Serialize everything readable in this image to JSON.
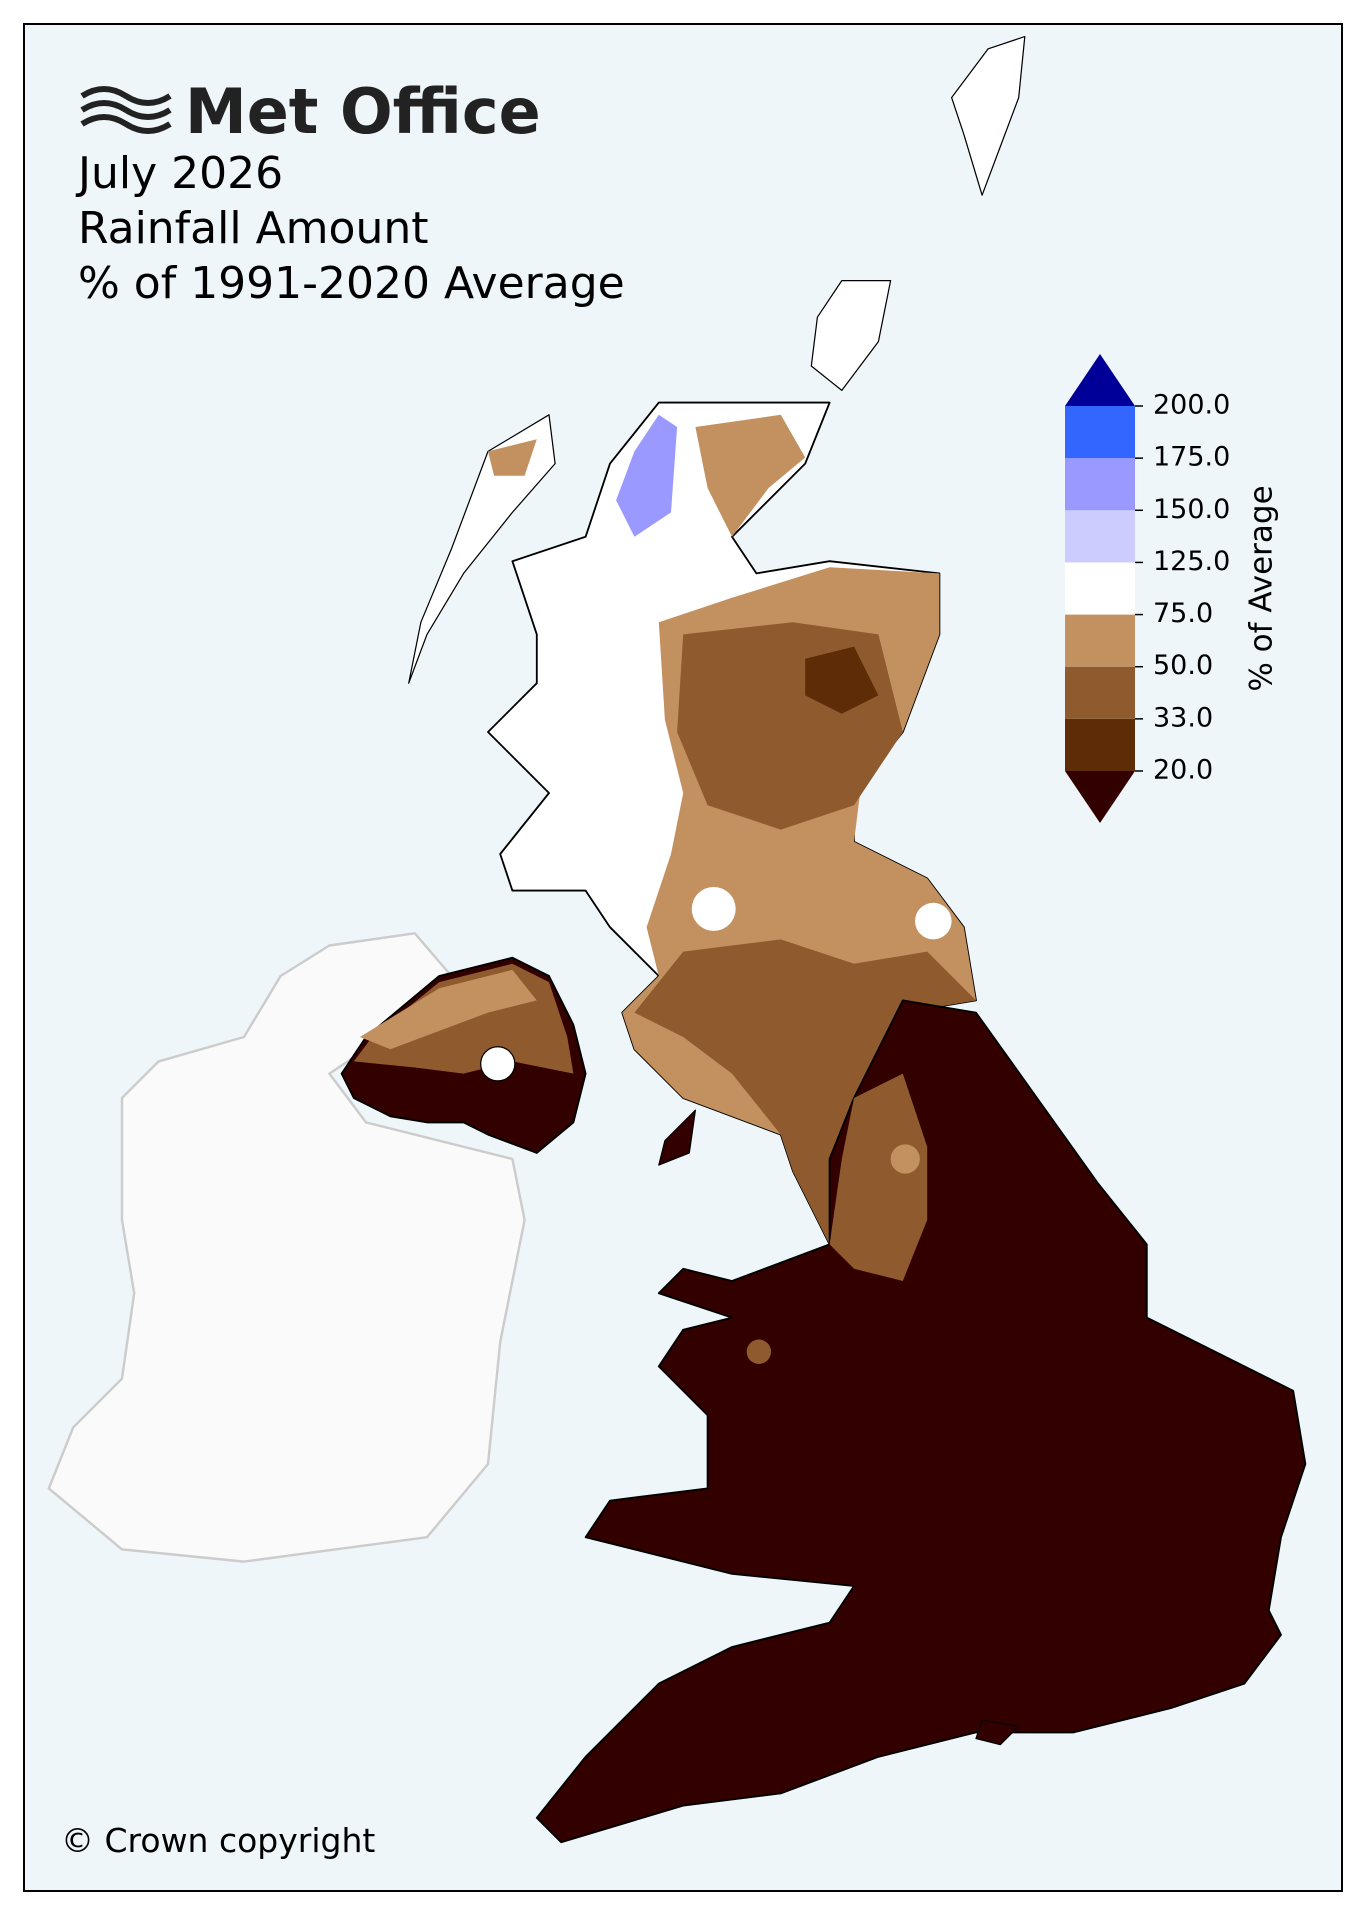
{
  "logo": "Met Office",
  "title": [
    "July 2026",
    "Rainfall Amount",
    "% of 1991-2020 Average"
  ],
  "colorbar": {
    "label": "% of Average",
    "ticks": [
      {
        "value": 20,
        "label": "20.0"
      },
      {
        "value": 33,
        "label": "33.0"
      },
      {
        "value": 50,
        "label": "50.0"
      },
      {
        "value": 75,
        "label": "75.0"
      },
      {
        "value": 125,
        "label": "125.0"
      },
      {
        "value": 150,
        "label": "150.0"
      },
      {
        "value": 175,
        "label": "175.0"
      },
      {
        "value": 200,
        "label": "200.0"
      }
    ],
    "colors": [
      "#5e2c06",
      "#8f5a2e",
      "#c3915f",
      "#ffffff",
      "#ccccff",
      "#9999ff",
      "#3366ff"
    ],
    "under_color": "#330000",
    "over_color": "#000099"
  },
  "copyright": "© Crown copyright"
}
